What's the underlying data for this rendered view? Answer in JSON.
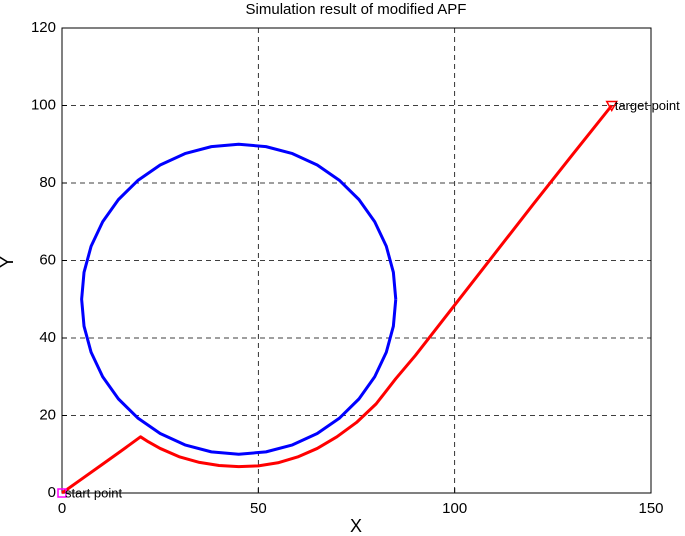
{
  "chart_data": {
    "type": "line",
    "title": "Simulation result of modified APF",
    "x_label": "X",
    "y_label": "Y",
    "xlim": [
      0,
      150
    ],
    "xticks": [
      0,
      50,
      100,
      150
    ],
    "ylim": [
      0,
      120
    ],
    "yticks": [
      0,
      20,
      40,
      60,
      80,
      100,
      120
    ],
    "grid": true,
    "series": [
      {
        "color": "#0000ff",
        "x": [
          85,
          84.39,
          82.59,
          79.64,
          75.64,
          70.71,
          65,
          58.68,
          51.95,
          45,
          38.05,
          31.32,
          25,
          19.29,
          14.36,
          10.36,
          7.41,
          5.61,
          5,
          5.61,
          7.41,
          10.36,
          14.36,
          19.29,
          25,
          31.32,
          38.05,
          45,
          51.95,
          58.68,
          65,
          70.71,
          75.64,
          79.64,
          82.59,
          84.39,
          85
        ],
        "y": [
          50,
          56.95,
          63.68,
          70,
          75.71,
          80.64,
          84.64,
          87.59,
          89.39,
          90,
          89.39,
          87.59,
          84.64,
          80.64,
          75.71,
          70,
          63.68,
          56.95,
          50,
          43.05,
          36.32,
          30,
          24.29,
          19.36,
          15.36,
          12.41,
          10.61,
          10,
          10.61,
          12.41,
          15.36,
          19.36,
          24.29,
          30,
          36.32,
          43.05,
          50
        ]
      },
      {
        "color": "#ff0000",
        "x": [
          0,
          5,
          10,
          15,
          20,
          22,
          25,
          30,
          35,
          40,
          45,
          50,
          55,
          60,
          65,
          70,
          75,
          80,
          85,
          90,
          100,
          110,
          120,
          130,
          140
        ],
        "y": [
          0,
          3.6,
          7.2,
          10.8,
          14.5,
          13.2,
          11.5,
          9.3,
          7.9,
          7.1,
          6.8,
          7.0,
          7.8,
          9.3,
          11.5,
          14.5,
          18.2,
          23.0,
          29.5,
          35.5,
          48.5,
          61.5,
          74.5,
          87.3,
          100
        ]
      }
    ],
    "markers": [
      {
        "x": 0,
        "y": 0,
        "shape": "square",
        "color": "#ff00ff"
      },
      {
        "x": 140,
        "y": 100,
        "shape": "triangle-down",
        "color": "#ff0000"
      }
    ],
    "annotations": [
      {
        "text": "start point",
        "x": 0,
        "y": 0
      },
      {
        "text": "target point",
        "x": 140,
        "y": 100
      }
    ]
  }
}
